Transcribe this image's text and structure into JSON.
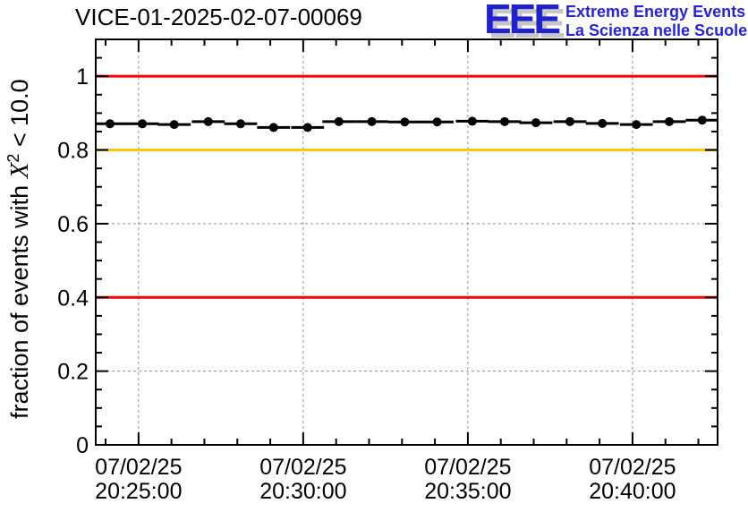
{
  "header": {
    "title": "VICE-01-2025-02-07-00069"
  },
  "logo": {
    "acronym": "EEE",
    "tagline1": "Extreme Energy Events",
    "tagline2": "La Scienza nelle Scuole",
    "blue": "#2121d0",
    "tagline_blue": "#2424e0",
    "shadow": "#c6c6c6"
  },
  "chart_data": {
    "type": "line",
    "title": "VICE-01-2025-02-07-00069",
    "ylabel": "fraction of events with X^2 < 10.0",
    "ylabel_parts": {
      "prefix": "fraction of events with ",
      "chi": "X",
      "sup": "2",
      "suffix": " < 10.0"
    },
    "ylim": [
      0,
      1.1
    ],
    "y_ticks": [
      {
        "v": 0.0,
        "label": "0"
      },
      {
        "v": 0.2,
        "label": "0.2"
      },
      {
        "v": 0.4,
        "label": "0.4"
      },
      {
        "v": 0.6,
        "label": "0.6"
      },
      {
        "v": 0.8,
        "label": "0.8"
      },
      {
        "v": 1.0,
        "label": "1"
      }
    ],
    "y_minor_step": 0.05,
    "x_range": [
      "20:23:42",
      "20:42:35"
    ],
    "x_major_ticks": [
      {
        "date": "07/02/25",
        "time": "20:25:00"
      },
      {
        "date": "07/02/25",
        "time": "20:30:00"
      },
      {
        "date": "07/02/25",
        "time": "20:35:00"
      },
      {
        "date": "07/02/25",
        "time": "20:40:00"
      }
    ],
    "x_minor_step_s": 60,
    "grid": "dashed-gray-at-major-ticks",
    "grid_color": "#909090",
    "legend": "none",
    "marker": "filled-circle",
    "series_color": "#000000",
    "x_bin_halfwidth_s": 30,
    "reference_lines": [
      {
        "value": 1.0,
        "color": "#ff0000",
        "meaning": "upper-limit"
      },
      {
        "value": 0.8,
        "color": "#ffc800",
        "meaning": "warning-level"
      },
      {
        "value": 0.4,
        "color": "#ff0000",
        "meaning": "alarm-level"
      }
    ],
    "points": [
      {
        "t": "20:24:08",
        "v": 0.871
      },
      {
        "t": "20:25:07",
        "v": 0.871
      },
      {
        "t": "20:26:05",
        "v": 0.869
      },
      {
        "t": "20:27:07",
        "v": 0.877
      },
      {
        "t": "20:28:06",
        "v": 0.871
      },
      {
        "t": "20:29:06",
        "v": 0.861
      },
      {
        "t": "20:30:08",
        "v": 0.861
      },
      {
        "t": "20:31:05",
        "v": 0.877
      },
      {
        "t": "20:32:05",
        "v": 0.877
      },
      {
        "t": "20:33:05",
        "v": 0.876
      },
      {
        "t": "20:34:04",
        "v": 0.876
      },
      {
        "t": "20:35:08",
        "v": 0.878
      },
      {
        "t": "20:36:07",
        "v": 0.877
      },
      {
        "t": "20:37:04",
        "v": 0.874
      },
      {
        "t": "20:38:06",
        "v": 0.877
      },
      {
        "t": "20:39:05",
        "v": 0.872
      },
      {
        "t": "20:40:07",
        "v": 0.869
      },
      {
        "t": "20:41:07",
        "v": 0.877
      },
      {
        "t": "20:42:07",
        "v": 0.881
      }
    ]
  }
}
